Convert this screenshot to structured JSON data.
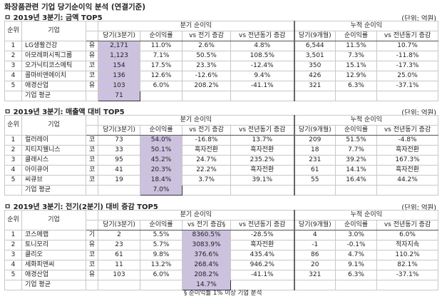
{
  "title": "화장품관련 기업 당기순이익 분석 (연결기준)",
  "unit": "(단위: 억원)",
  "headers": {
    "rank": "순위",
    "company": "기업",
    "quarter_group": "분기 순이익",
    "cumulative_group": "누적 순이익",
    "q_current": "당기(3분기)",
    "q_margin": "순이익률",
    "q_vs_prev": "vs 전기 증감",
    "q_vs_prev_marked": "vs 전기 증감§",
    "q_vs_yoy": "vs 전년동기 증감",
    "c_current": "당기(9개월)",
    "c_margin": "순이익률",
    "c_vs_yoy": "vs 전년동기 증감"
  },
  "average_label": "기업 평균",
  "highlight_color": "#cdc1e0",
  "tables": [
    {
      "section_title": "ㅁ 2019년 3분기:  금액 TOP5",
      "highlight_col": 3,
      "marked": false,
      "rows": [
        [
          "1",
          "LG생활건강",
          "유",
          "2,171",
          "11.0%",
          "2.6%",
          "4.8%",
          "6,544",
          "11.5%",
          "10.7%"
        ],
        [
          "2",
          "아모레퍼시픽그룹",
          "유",
          "1,123",
          "7.1%",
          "50.5%",
          "108.5%",
          "3,501",
          "7.3%",
          "-11.8%"
        ],
        [
          "3",
          "오가닉티코스메틱",
          "코",
          "154",
          "17.5%",
          "23.3%",
          "-12.4%",
          "350",
          "15.1%",
          "-17.3%"
        ],
        [
          "4",
          "콜마비앤에이치",
          "코",
          "136",
          "12.6%",
          "-12.6%",
          "9.4%",
          "426",
          "12.9%",
          "25.0%"
        ],
        [
          "5",
          "애경산업",
          "유",
          "103",
          "6.0%",
          "208.2%",
          "-41.1%",
          "321",
          "6.3%",
          "-37.1%"
        ]
      ],
      "average": "71"
    },
    {
      "section_title": "ㅁ 2019년 3분기:  매출액 대비 TOP5",
      "highlight_col": 4,
      "marked": false,
      "rows": [
        [
          "1",
          "컬러레이",
          "코",
          "73",
          "54.0%",
          "-16.8%",
          "13.7%",
          "209",
          "51.5%",
          "-4.8%"
        ],
        [
          "2",
          "지티지웰니스",
          "코",
          "33",
          "50.1%",
          "흑자전환",
          "흑자전환",
          "18",
          "7.7%",
          "흑자전환"
        ],
        [
          "3",
          "클래시스",
          "코",
          "95",
          "45.2%",
          "24.7%",
          "235.2%",
          "231",
          "39.2%",
          "167.3%"
        ],
        [
          "4",
          "아이큐어",
          "코",
          "41",
          "20.3%",
          "22.2%",
          "흑자전환",
          "61",
          "14.1%",
          "흑자전환"
        ],
        [
          "5",
          "씨큐브",
          "코",
          "19",
          "18.4%",
          "3.7%",
          "39.1%",
          "55",
          "16.4%",
          "44.2%"
        ]
      ],
      "average": "7.0%"
    },
    {
      "section_title": "ㅁ 2019년 3분기:  전기(2분기) 대비 증감 TOP5",
      "highlight_col": 5,
      "marked": true,
      "rows": [
        [
          "1",
          "코스메랩",
          "기",
          "2",
          "5.5%",
          "8360.5%",
          "-28.5%",
          "4",
          "3.0%",
          "6.0%"
        ],
        [
          "2",
          "토니모리",
          "유",
          "23",
          "5.7%",
          "3083.9%",
          "흑자전환",
          "-1",
          "-0.1%",
          "적자지속"
        ],
        [
          "3",
          "클리오",
          "코",
          "61",
          "9.8%",
          "376.6%",
          "435.4%",
          "86",
          "4.7%",
          "110.2%"
        ],
        [
          "4",
          "세화피앤씨",
          "코",
          "11",
          "13.2%",
          "268.4%",
          "946.2%",
          "20",
          "9.1%",
          "82.1%"
        ],
        [
          "5",
          "애경산업",
          "유",
          "103",
          "6.0%",
          "208.2%",
          "-41.1%",
          "321",
          "6.3%",
          "-37.1%"
        ]
      ],
      "average": "14.7%"
    }
  ],
  "footnote": "§ 순이익률 1% 이상 기업 분석"
}
